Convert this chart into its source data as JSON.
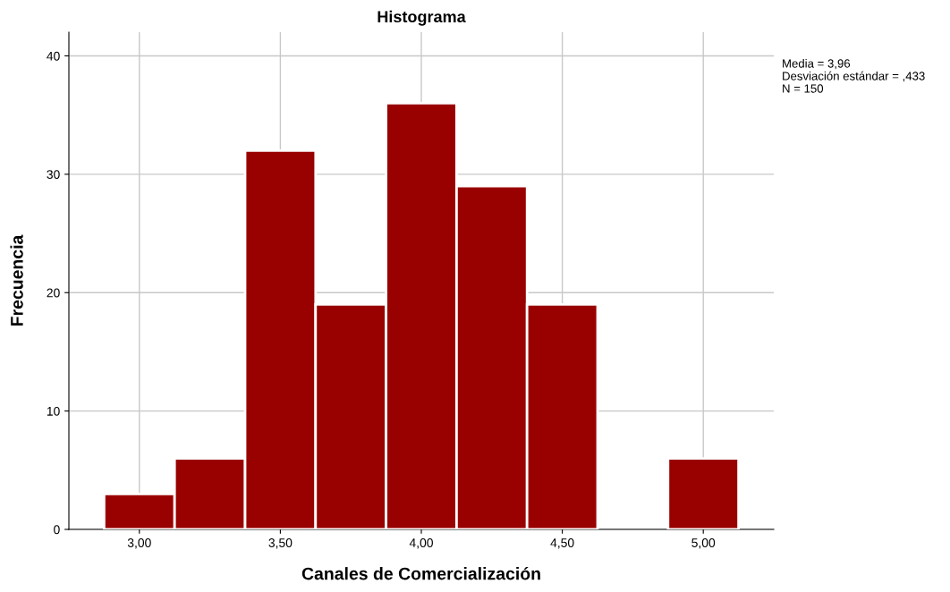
{
  "chart_data": {
    "type": "histogram",
    "title": "Histograma",
    "xlabel": "Canales de Comercialización",
    "ylabel": "Frecuencia",
    "bins": [
      2.875,
      3.125,
      3.375,
      3.625,
      3.875,
      4.125,
      4.375,
      4.625,
      4.875,
      5.125
    ],
    "values": [
      3,
      6,
      32,
      19,
      36,
      29,
      19,
      0,
      6
    ],
    "color": "#990000",
    "xlim": [
      2.75,
      5.25
    ],
    "ylim": [
      0,
      42
    ],
    "xticks": [
      {
        "value": 3,
        "label": "3,00"
      },
      {
        "value": 3.5,
        "label": "3,50"
      },
      {
        "value": 4,
        "label": "4,00"
      },
      {
        "value": 4.5,
        "label": "4,50"
      },
      {
        "value": 5,
        "label": "5,00"
      }
    ],
    "yticks": [
      0,
      10,
      20,
      30,
      40
    ],
    "grid": true,
    "annotations": [
      "Media = 3,96",
      "Desviación estándar = ,433",
      "N = 150"
    ]
  }
}
